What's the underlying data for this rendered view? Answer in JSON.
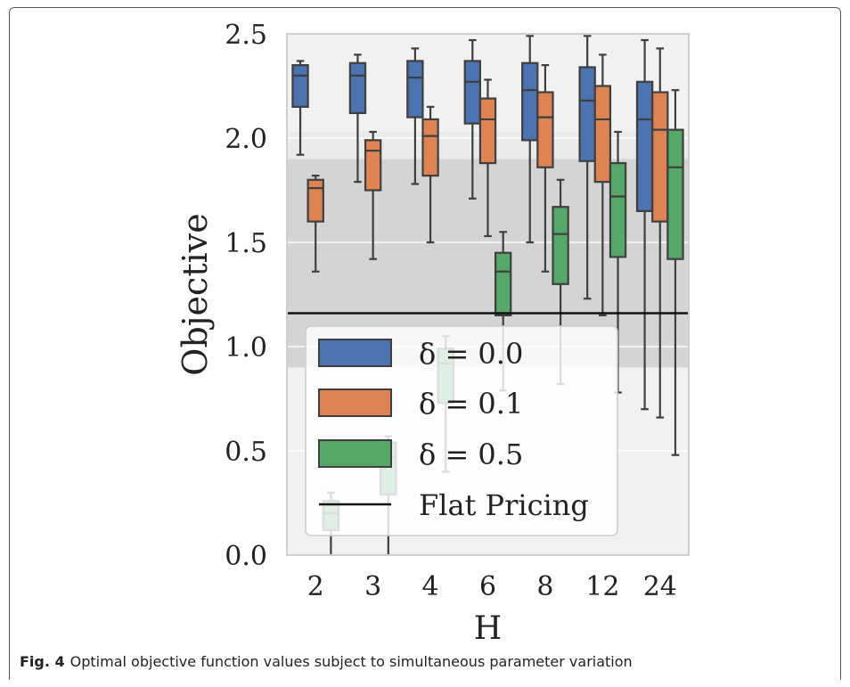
{
  "caption": {
    "label": "Fig. 4",
    "text": "Optimal objective function values subject to simultaneous parameter variation"
  },
  "chart_data": {
    "type": "box",
    "xlabel": "H",
    "ylabel": "Objective",
    "ylim": [
      0,
      2.5
    ],
    "yticks": [
      "0.0",
      "0.5",
      "1.0",
      "1.5",
      "2.0",
      "2.5"
    ],
    "categories": [
      "2",
      "3",
      "4",
      "6",
      "8",
      "12",
      "24"
    ],
    "reference_line": {
      "name": "Flat Pricing",
      "value": 1.16,
      "color": "#111111"
    },
    "bands": [
      {
        "from": 0.9,
        "to": 1.9,
        "color": "#d4d4d4"
      },
      {
        "from": 1.9,
        "to": 2.03,
        "color": "#eaeaea"
      }
    ],
    "legend": {
      "placement": "lower-left",
      "entries": [
        "δ = 0.0",
        "δ = 0.1",
        "δ = 0.5",
        "Flat Pricing"
      ]
    },
    "series": [
      {
        "name": "δ = 0.0",
        "color": "#4c72b0",
        "boxes": [
          {
            "category": "2",
            "min": 1.92,
            "q1": 2.15,
            "median": 2.3,
            "q3": 2.35,
            "max": 2.37
          },
          {
            "category": "3",
            "min": 1.79,
            "q1": 2.12,
            "median": 2.3,
            "q3": 2.36,
            "max": 2.4
          },
          {
            "category": "4",
            "min": 1.78,
            "q1": 2.1,
            "median": 2.29,
            "q3": 2.37,
            "max": 2.43
          },
          {
            "category": "6",
            "min": 1.71,
            "q1": 2.07,
            "median": 2.27,
            "q3": 2.37,
            "max": 2.47
          },
          {
            "category": "8",
            "min": 1.5,
            "q1": 1.99,
            "median": 2.23,
            "q3": 2.36,
            "max": 2.49
          },
          {
            "category": "12",
            "min": 1.23,
            "q1": 1.89,
            "median": 2.18,
            "q3": 2.34,
            "max": 2.49
          },
          {
            "category": "24",
            "min": 0.7,
            "q1": 1.65,
            "median": 2.09,
            "q3": 2.27,
            "max": 2.47
          }
        ]
      },
      {
        "name": "δ = 0.1",
        "color": "#dd8452",
        "boxes": [
          {
            "category": "2",
            "min": 1.36,
            "q1": 1.6,
            "median": 1.76,
            "q3": 1.8,
            "max": 1.82
          },
          {
            "category": "3",
            "min": 1.42,
            "q1": 1.75,
            "median": 1.94,
            "q3": 1.99,
            "max": 2.03
          },
          {
            "category": "4",
            "min": 1.5,
            "q1": 1.82,
            "median": 2.01,
            "q3": 2.09,
            "max": 2.15
          },
          {
            "category": "6",
            "min": 1.53,
            "q1": 1.88,
            "median": 2.09,
            "q3": 2.19,
            "max": 2.28
          },
          {
            "category": "8",
            "min": 1.36,
            "q1": 1.86,
            "median": 2.1,
            "q3": 2.22,
            "max": 2.35
          },
          {
            "category": "12",
            "min": 1.15,
            "q1": 1.79,
            "median": 2.09,
            "q3": 2.25,
            "max": 2.4
          },
          {
            "category": "24",
            "min": 0.66,
            "q1": 1.6,
            "median": 2.04,
            "q3": 2.22,
            "max": 2.43
          }
        ]
      },
      {
        "name": "δ = 0.5",
        "color": "#55a868",
        "boxes": [
          {
            "category": "2",
            "min": -0.2,
            "q1": 0.12,
            "median": 0.2,
            "q3": 0.26,
            "max": 0.3
          },
          {
            "category": "3",
            "min": 0.0,
            "q1": 0.29,
            "median": 0.47,
            "q3": 0.54,
            "max": 0.57
          },
          {
            "category": "4",
            "min": 0.4,
            "q1": 0.73,
            "median": 0.92,
            "q3": 0.99,
            "max": 1.05
          },
          {
            "category": "6",
            "min": 0.79,
            "q1": 1.15,
            "median": 1.36,
            "q3": 1.45,
            "max": 1.55
          },
          {
            "category": "8",
            "min": 0.82,
            "q1": 1.3,
            "median": 1.54,
            "q3": 1.67,
            "max": 1.8
          },
          {
            "category": "12",
            "min": 0.78,
            "q1": 1.43,
            "median": 1.72,
            "q3": 1.88,
            "max": 2.03
          },
          {
            "category": "24",
            "min": 0.48,
            "q1": 1.42,
            "median": 1.86,
            "q3": 2.04,
            "max": 2.23
          }
        ]
      }
    ]
  }
}
